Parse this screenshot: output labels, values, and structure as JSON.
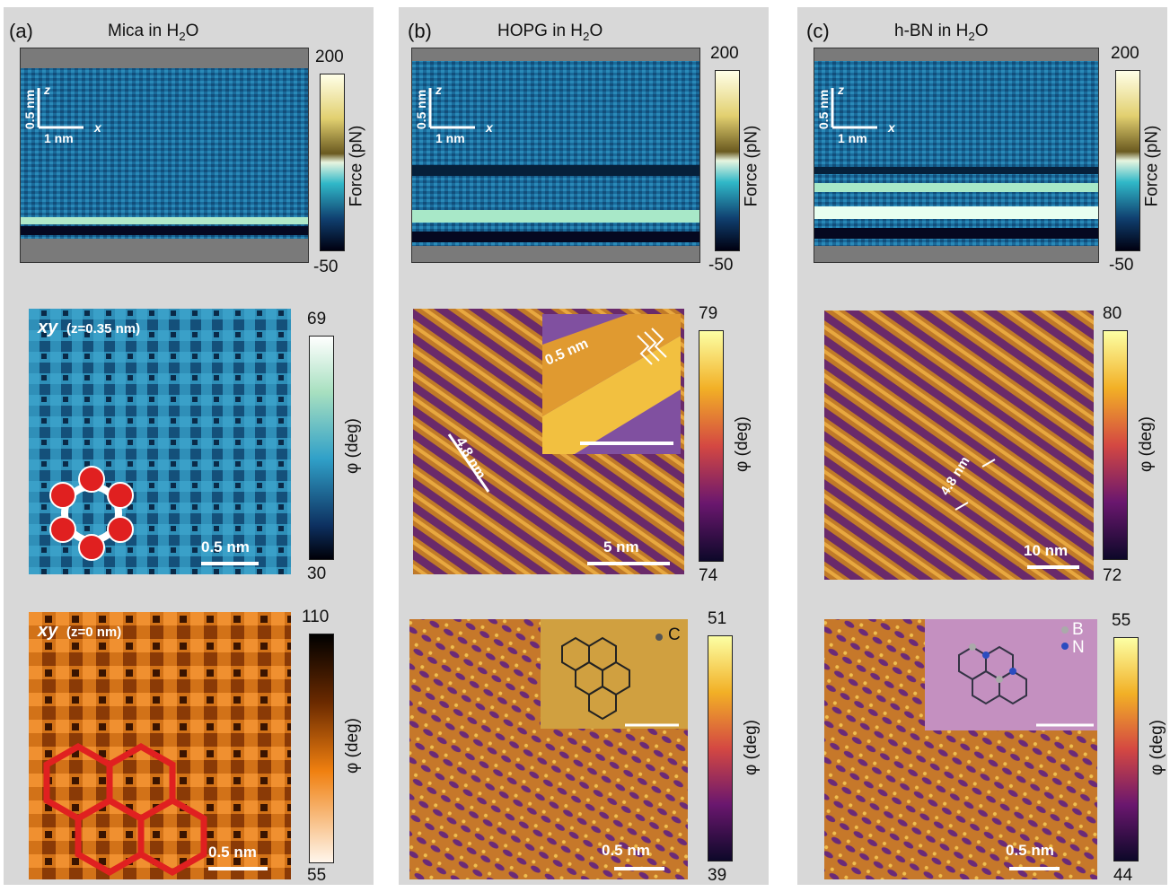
{
  "panels": [
    {
      "label": "(a)",
      "title": "Mica in H",
      "title_sub": "2",
      "title_end": "O",
      "side": {
        "scale_z": "0.5 nm",
        "z_axis": "z",
        "scale_x": "1 nm",
        "x_axis": "x",
        "cbar_max": "200",
        "cbar_min": "-50",
        "cbar_label": "Force (pN)"
      },
      "map1": {
        "label_main": "xy",
        "label_detail": "(z=0.35 nm)",
        "scale": "0.5 nm",
        "cbar_max": "69",
        "cbar_min": "30",
        "cbar_label": "φ (deg)"
      },
      "map2": {
        "label_main": "xy",
        "label_detail": "(z=0 nm)",
        "scale": "0.5 nm",
        "cbar_max": "110",
        "cbar_min": "55",
        "cbar_label": "φ (deg)"
      }
    },
    {
      "label": "(b)",
      "title": "HOPG in H",
      "title_sub": "2",
      "title_end": "O",
      "side": {
        "scale_z": "0.5 nm",
        "z_axis": "z",
        "scale_x": "1 nm",
        "x_axis": "x",
        "cbar_max": "200",
        "cbar_min": "-50",
        "cbar_label": "Force (pN)"
      },
      "map1": {
        "period": "4.8 nm",
        "inset_spacing": "0.5 nm",
        "scale": "5 nm",
        "cbar_max": "79",
        "cbar_min": "74",
        "cbar_label": "φ (deg)"
      },
      "map2": {
        "atom_legend": "C",
        "scale": "0.5 nm",
        "cbar_max": "51",
        "cbar_min": "39",
        "cbar_label": "φ (deg)"
      }
    },
    {
      "label": "(c)",
      "title": "h-BN in H",
      "title_sub": "2",
      "title_end": "O",
      "side": {
        "scale_z": "0.5 nm",
        "z_axis": "z",
        "scale_x": "1 nm",
        "x_axis": "x",
        "cbar_max": "200",
        "cbar_min": "-50",
        "cbar_label": "Force (pN)"
      },
      "map1": {
        "period": "4.8 nm",
        "scale": "10 nm",
        "cbar_max": "80",
        "cbar_min": "72",
        "cbar_label": "φ (deg)"
      },
      "map2": {
        "atom_legend_b": "B",
        "atom_legend_n": "N",
        "scale": "0.5 nm",
        "cbar_max": "55",
        "cbar_min": "44",
        "cbar_label": "φ (deg)"
      }
    }
  ],
  "colors": {
    "panel_bg": "#d8d8d8",
    "force_map": "#1f6f9f",
    "mica_phase": "#2f8fb8",
    "mica_z0": "#d86a10",
    "hopg_phase": "#c27a2a",
    "water_oxygen": "#e02020"
  }
}
